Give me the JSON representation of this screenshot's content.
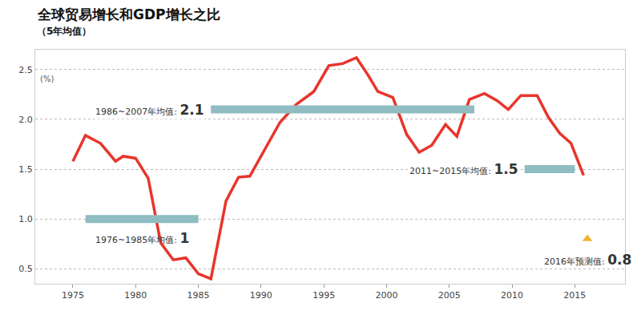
{
  "chart_data": {
    "type": "line",
    "title": "全球贸易增长和GDP增长之比",
    "subtitle": "（5年均值）",
    "ylabel": "(%)",
    "x": [
      1975,
      1976,
      1977.2,
      1978.4,
      1979,
      1980,
      1981,
      1982,
      1983,
      1984,
      1985,
      1986,
      1987.2,
      1988.2,
      1989.1,
      1990.6,
      1991.5,
      1992.8,
      1994.2,
      1995.4,
      1996.5,
      1997.6,
      1998.5,
      1999.3,
      2000.5,
      2001.6,
      2002.6,
      2003.6,
      2004.7,
      2005.6,
      2006.6,
      2007.8,
      2008.8,
      2009.7,
      2010.7,
      2012,
      2012.9,
      2013.8,
      2014.7,
      2015.7
    ],
    "values": [
      1.58,
      1.84,
      1.76,
      1.58,
      1.63,
      1.61,
      1.41,
      0.76,
      0.59,
      0.61,
      0.45,
      0.4,
      1.18,
      1.42,
      1.43,
      1.76,
      1.97,
      2.15,
      2.28,
      2.54,
      2.56,
      2.62,
      2.45,
      2.28,
      2.22,
      1.85,
      1.67,
      1.74,
      1.95,
      1.83,
      2.2,
      2.26,
      2.19,
      2.1,
      2.24,
      2.24,
      2.02,
      1.86,
      1.76,
      1.44
    ],
    "color": "#e8352b",
    "xlim": [
      1972,
      2019
    ],
    "xticks": [
      1975,
      1980,
      1985,
      1990,
      1995,
      2000,
      2005,
      2010,
      2015
    ],
    "ylim": [
      0.35,
      2.7
    ],
    "yticks": [
      0.5,
      {
        "value": 1,
        "label": "1.0"
      },
      1.5,
      {
        "value": 2,
        "label": "2.0"
      },
      2.5
    ],
    "grid": true,
    "averages": [
      {
        "label": "1976~1985年均值:",
        "value_label": "1",
        "value": 1,
        "start": 1976,
        "end": 1985,
        "color": "#8fbdc1"
      },
      {
        "label": "1986~2007年均值:",
        "value_label": "2.1",
        "value": 2.1,
        "start": 1986,
        "end": 2007,
        "color": "#8fbdc1"
      },
      {
        "label": "2011~2015年均值:",
        "value_label": "1.5",
        "value": 1.5,
        "start": 2011,
        "end": 2015,
        "color": "#8fbdc1"
      }
    ],
    "forecast": {
      "label": "2016年预测值:",
      "value_label": "0.8",
      "x": 2016,
      "value": 0.8,
      "color": "#f0b232",
      "marker": "triangle-up"
    }
  }
}
